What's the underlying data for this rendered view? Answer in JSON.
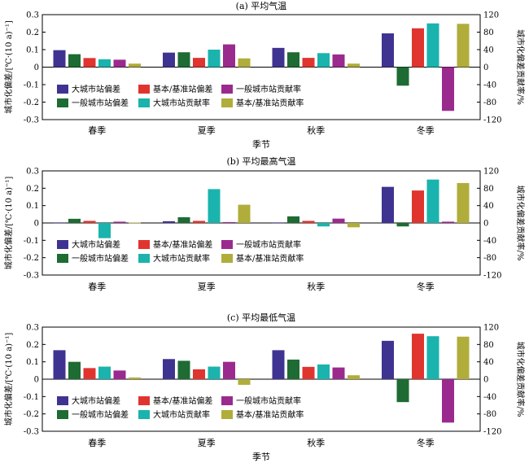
{
  "colors": {
    "big_bias": "#3f3391",
    "gen_bias": "#1e6b33",
    "base_bias": "#e0342f",
    "big_contrib": "#1ab3ad",
    "gen_contrib": "#9b2a8e",
    "base_contrib": "#b0ad3a"
  },
  "legend": {
    "big_bias": "大城市站偏差",
    "gen_bias": "一般城市站偏差",
    "base_bias": "基本/基准站偏差",
    "big_contrib": "大城市站贡献率",
    "gen_contrib": "一般城市站贡献率",
    "base_contrib": "基本/基准站贡献率"
  },
  "chart_data": [
    {
      "type": "bar",
      "title": "(a) 平均气温",
      "xlabel": "季节",
      "ylabel": "城市化偏差/[℃·(10 a)⁻¹]",
      "y2label": "城市化偏差贡献率/%",
      "ylim": [
        -0.3,
        0.3
      ],
      "y2lim": [
        -120,
        120
      ],
      "yticks": [
        "0.3",
        "0.2",
        "0.1",
        "0",
        "-0.1",
        "-0.2",
        "-0.3"
      ],
      "y2ticks": [
        "120",
        "80",
        "40",
        "0",
        "-40",
        "-80",
        "-120"
      ],
      "categories": [
        "春季",
        "夏季",
        "秋季",
        "冬季"
      ],
      "series": [
        {
          "key": "big_bias",
          "axis": "left",
          "values": [
            0.097,
            0.083,
            0.11,
            0.193
          ]
        },
        {
          "key": "gen_bias",
          "axis": "left",
          "values": [
            0.074,
            0.085,
            0.085,
            -0.106
          ]
        },
        {
          "key": "base_bias",
          "axis": "left",
          "values": [
            0.052,
            0.053,
            0.053,
            0.222
          ]
        },
        {
          "key": "big_contrib",
          "axis": "right",
          "values": [
            18,
            40,
            32,
            100
          ]
        },
        {
          "key": "gen_contrib",
          "axis": "right",
          "values": [
            17,
            52,
            29,
            -100
          ]
        },
        {
          "key": "base_contrib",
          "axis": "right",
          "values": [
            8,
            20,
            8,
            99
          ]
        }
      ]
    },
    {
      "type": "bar",
      "title": "(b) 平均最高气温",
      "xlabel": "季节",
      "ylabel": "城市化偏差/[℃·(10 a)⁻¹]",
      "y2label": "城市化偏差贡献率/%",
      "ylim": [
        -0.3,
        0.3
      ],
      "y2lim": [
        -120,
        120
      ],
      "yticks": [
        "0.3",
        "0.2",
        "0.1",
        "0",
        "-0.1",
        "-0.2",
        "-0.3"
      ],
      "y2ticks": [
        "120",
        "80",
        "40",
        "0",
        "-40",
        "-80",
        "-120"
      ],
      "categories": [
        "春季",
        "夏季",
        "秋季",
        "冬季"
      ],
      "series": [
        {
          "key": "big_bias",
          "axis": "left",
          "values": [
            0.003,
            0.01,
            0.003,
            0.208
          ]
        },
        {
          "key": "gen_bias",
          "axis": "left",
          "values": [
            0.024,
            0.033,
            0.038,
            -0.02
          ]
        },
        {
          "key": "base_bias",
          "axis": "left",
          "values": [
            0.012,
            0.012,
            0.012,
            0.187
          ]
        },
        {
          "key": "big_contrib",
          "axis": "right",
          "values": [
            -35,
            78,
            -8,
            100
          ]
        },
        {
          "key": "gen_contrib",
          "axis": "right",
          "values": [
            3,
            2,
            10,
            3
          ]
        },
        {
          "key": "base_contrib",
          "axis": "right",
          "values": [
            1,
            42,
            -10,
            92
          ]
        }
      ]
    },
    {
      "type": "bar",
      "title": "(c) 平均最低气温",
      "xlabel": "季节",
      "ylabel": "城市化偏差/[℃·(10 a)⁻¹]",
      "y2label": "城市化偏差贡献率/%",
      "ylim": [
        -0.3,
        0.3
      ],
      "y2lim": [
        -120,
        120
      ],
      "yticks": [
        "0.3",
        "0.2",
        "0.1",
        "0",
        "-0.1",
        "-0.2",
        "-0.3"
      ],
      "y2ticks": [
        "120",
        "80",
        "40",
        "0",
        "-40",
        "-80",
        "-120"
      ],
      "categories": [
        "春季",
        "夏季",
        "秋季",
        "冬季"
      ],
      "series": [
        {
          "key": "big_bias",
          "axis": "left",
          "values": [
            0.167,
            0.116,
            0.167,
            0.221
          ]
        },
        {
          "key": "gen_bias",
          "axis": "left",
          "values": [
            0.1,
            0.106,
            0.113,
            -0.132
          ]
        },
        {
          "key": "base_bias",
          "axis": "left",
          "values": [
            0.064,
            0.057,
            0.071,
            0.262
          ]
        },
        {
          "key": "big_contrib",
          "axis": "right",
          "values": [
            29,
            29,
            34,
            99
          ]
        },
        {
          "key": "gen_contrib",
          "axis": "right",
          "values": [
            20,
            40,
            27,
            -100
          ]
        },
        {
          "key": "base_contrib",
          "axis": "right",
          "values": [
            4,
            -13,
            9,
            98
          ]
        }
      ]
    }
  ]
}
